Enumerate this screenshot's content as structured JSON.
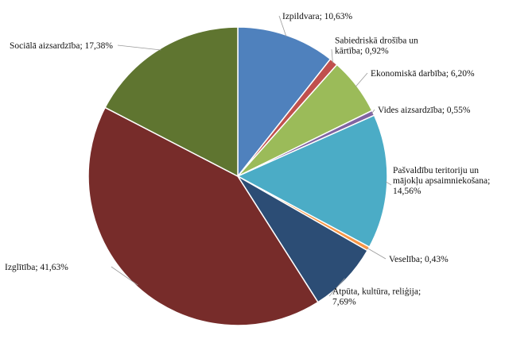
{
  "chart_data": {
    "type": "pie",
    "title": "",
    "slices": [
      {
        "name": "Izpildvara",
        "value": 10.63,
        "color": "#4f81bd",
        "label_lines": [
          "Izpildvara; 10,63%"
        ]
      },
      {
        "name": "Sabiedriskā drošība un kārtība",
        "value": 0.92,
        "color": "#c0504d",
        "label_lines": [
          "Sabiedriskā drošība un",
          "kārtība; 0,92%"
        ]
      },
      {
        "name": "Ekonomiskā darbība",
        "value": 6.2,
        "color": "#9bbb59",
        "label_lines": [
          "Ekonomiskā darbība; 6,20%"
        ]
      },
      {
        "name": "Vides aizsardzība",
        "value": 0.55,
        "color": "#8064a2",
        "label_lines": [
          "Vides aizsardzība; 0,55%"
        ]
      },
      {
        "name": "Pašvaldību teritoriju un mājokļu apsaimniekošana",
        "value": 14.56,
        "color": "#4bacc6",
        "label_lines": [
          "Pašvaldību teritoriju un",
          "mājokļu apsaimniekošana;",
          "14,56%"
        ]
      },
      {
        "name": "Veselība",
        "value": 0.43,
        "color": "#f79646",
        "label_lines": [
          "Veselība; 0,43%"
        ]
      },
      {
        "name": "Atpūta, kultūra, reliģija",
        "value": 7.69,
        "color": "#2c4d75",
        "label_lines": [
          "Atpūta, kultūra, reliģija;",
          "7,69%"
        ]
      },
      {
        "name": "Izglītība",
        "value": 41.63,
        "color": "#772c2a",
        "label_lines": [
          "Izglītība; 41,63%"
        ]
      },
      {
        "name": "Sociālā aizsardzība",
        "value": 17.38,
        "color": "#5f7530",
        "label_lines": [
          "Sociālā aizsardzība; 17,38%"
        ]
      }
    ]
  }
}
